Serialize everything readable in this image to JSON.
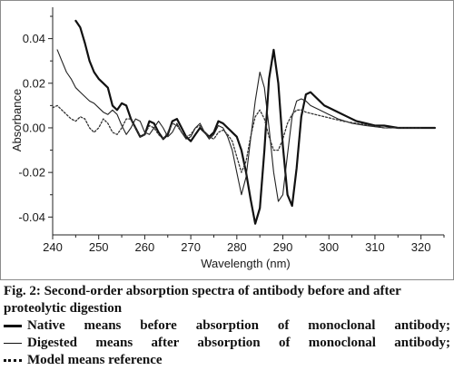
{
  "chart_data": {
    "type": "line",
    "xlabel": "Wavelength (nm)",
    "ylabel": "Absorbance",
    "xlim": [
      240,
      325
    ],
    "ylim": [
      -0.048,
      0.05
    ],
    "x_ticks": [
      240,
      250,
      260,
      270,
      280,
      290,
      300,
      310,
      320
    ],
    "y_ticks": [
      0.04,
      0.02,
      0.0,
      -0.02,
      -0.04
    ],
    "y_tick_labels": [
      "0.04",
      "0.02",
      "0.00",
      "-0.02",
      "-0.04"
    ],
    "grid": false,
    "series": [
      {
        "name": "Native",
        "style": "solid-thick",
        "points": [
          [
            245,
            0.048
          ],
          [
            246,
            0.045
          ],
          [
            247,
            0.038
          ],
          [
            248,
            0.03
          ],
          [
            249,
            0.025
          ],
          [
            250,
            0.022
          ],
          [
            251,
            0.02
          ],
          [
            252,
            0.018
          ],
          [
            253,
            0.01
          ],
          [
            254,
            0.008
          ],
          [
            255,
            0.011
          ],
          [
            256,
            0.01
          ],
          [
            257,
            0.004
          ],
          [
            258,
            0.0
          ],
          [
            259,
            -0.004
          ],
          [
            260,
            -0.003
          ],
          [
            261,
            0.003
          ],
          [
            262,
            0.002
          ],
          [
            263,
            -0.002
          ],
          [
            264,
            -0.005
          ],
          [
            265,
            -0.003
          ],
          [
            266,
            0.003
          ],
          [
            267,
            0.004
          ],
          [
            268,
            0.0
          ],
          [
            269,
            -0.004
          ],
          [
            270,
            -0.006
          ],
          [
            271,
            -0.003
          ],
          [
            272,
            0.0
          ],
          [
            273,
            -0.002
          ],
          [
            274,
            -0.004
          ],
          [
            275,
            -0.002
          ],
          [
            276,
            0.003
          ],
          [
            277,
            0.002
          ],
          [
            278,
            0.0
          ],
          [
            279,
            -0.002
          ],
          [
            280,
            -0.004
          ],
          [
            281,
            -0.01
          ],
          [
            282,
            -0.02
          ],
          [
            283,
            -0.032
          ],
          [
            284,
            -0.043
          ],
          [
            285,
            -0.036
          ],
          [
            286,
            -0.01
          ],
          [
            287,
            0.022
          ],
          [
            288,
            0.035
          ],
          [
            289,
            0.02
          ],
          [
            290,
            -0.008
          ],
          [
            291,
            -0.03
          ],
          [
            292,
            -0.035
          ],
          [
            293,
            -0.018
          ],
          [
            294,
            0.005
          ],
          [
            295,
            0.015
          ],
          [
            296,
            0.016
          ],
          [
            297,
            0.014
          ],
          [
            298,
            0.012
          ],
          [
            299,
            0.01
          ],
          [
            300,
            0.009
          ],
          [
            302,
            0.007
          ],
          [
            304,
            0.005
          ],
          [
            306,
            0.003
          ],
          [
            308,
            0.002
          ],
          [
            310,
            0.001
          ],
          [
            312,
            0.001
          ],
          [
            315,
            0.0
          ],
          [
            318,
            0.0
          ],
          [
            320,
            0.0
          ],
          [
            323,
            0.0
          ]
        ]
      },
      {
        "name": "Digested",
        "style": "solid-thin",
        "points": [
          [
            241,
            0.035
          ],
          [
            242,
            0.03
          ],
          [
            243,
            0.025
          ],
          [
            244,
            0.022
          ],
          [
            245,
            0.018
          ],
          [
            246,
            0.016
          ],
          [
            247,
            0.014
          ],
          [
            248,
            0.012
          ],
          [
            249,
            0.011
          ],
          [
            250,
            0.009
          ],
          [
            251,
            0.007
          ],
          [
            252,
            0.006
          ],
          [
            253,
            0.008
          ],
          [
            254,
            0.006
          ],
          [
            255,
            0.001
          ],
          [
            256,
            -0.003
          ],
          [
            257,
            0.0
          ],
          [
            258,
            0.004
          ],
          [
            259,
            0.003
          ],
          [
            260,
            -0.002
          ],
          [
            261,
            -0.003
          ],
          [
            262,
            0.0
          ],
          [
            263,
            0.003
          ],
          [
            264,
            0.0
          ],
          [
            265,
            -0.004
          ],
          [
            266,
            -0.002
          ],
          [
            267,
            0.002
          ],
          [
            268,
            -0.002
          ],
          [
            269,
            -0.005
          ],
          [
            270,
            -0.004
          ],
          [
            271,
            0.0
          ],
          [
            272,
            0.002
          ],
          [
            273,
            -0.002
          ],
          [
            274,
            -0.005
          ],
          [
            275,
            -0.003
          ],
          [
            276,
            0.001
          ],
          [
            277,
            0.0
          ],
          [
            278,
            -0.004
          ],
          [
            279,
            -0.01
          ],
          [
            280,
            -0.02
          ],
          [
            281,
            -0.03
          ],
          [
            282,
            -0.022
          ],
          [
            283,
            -0.005
          ],
          [
            284,
            0.012
          ],
          [
            285,
            0.025
          ],
          [
            286,
            0.018
          ],
          [
            287,
            0.0
          ],
          [
            288,
            -0.02
          ],
          [
            289,
            -0.033
          ],
          [
            290,
            -0.03
          ],
          [
            291,
            -0.012
          ],
          [
            292,
            0.005
          ],
          [
            293,
            0.012
          ],
          [
            294,
            0.013
          ],
          [
            295,
            0.012
          ],
          [
            296,
            0.01
          ],
          [
            298,
            0.008
          ],
          [
            300,
            0.006
          ],
          [
            302,
            0.004
          ],
          [
            305,
            0.002
          ],
          [
            308,
            0.001
          ],
          [
            312,
            0.0
          ],
          [
            318,
            0.0
          ],
          [
            323,
            0.0
          ]
        ]
      },
      {
        "name": "Model",
        "style": "dotted",
        "points": [
          [
            240,
            0.009
          ],
          [
            241,
            0.01
          ],
          [
            242,
            0.008
          ],
          [
            243,
            0.006
          ],
          [
            244,
            0.004
          ],
          [
            245,
            0.003
          ],
          [
            246,
            0.005
          ],
          [
            247,
            0.004
          ],
          [
            248,
            0.0
          ],
          [
            249,
            -0.002
          ],
          [
            250,
            0.0
          ],
          [
            251,
            0.004
          ],
          [
            252,
            0.002
          ],
          [
            253,
            -0.002
          ],
          [
            254,
            -0.003
          ],
          [
            255,
            0.0
          ],
          [
            256,
            0.004
          ],
          [
            257,
            0.004
          ],
          [
            258,
            0.0
          ],
          [
            259,
            -0.004
          ],
          [
            260,
            -0.003
          ],
          [
            261,
            0.001
          ],
          [
            262,
            0.0
          ],
          [
            263,
            -0.003
          ],
          [
            264,
            -0.005
          ],
          [
            265,
            -0.002
          ],
          [
            266,
            0.002
          ],
          [
            267,
            0.001
          ],
          [
            268,
            -0.002
          ],
          [
            269,
            -0.004
          ],
          [
            270,
            -0.003
          ],
          [
            271,
            0.0
          ],
          [
            272,
            0.001
          ],
          [
            273,
            -0.002
          ],
          [
            274,
            -0.004
          ],
          [
            275,
            -0.005
          ],
          [
            276,
            -0.002
          ],
          [
            277,
            -0.001
          ],
          [
            278,
            -0.003
          ],
          [
            279,
            -0.006
          ],
          [
            280,
            -0.013
          ],
          [
            281,
            -0.02
          ],
          [
            282,
            -0.015
          ],
          [
            283,
            -0.004
          ],
          [
            284,
            0.005
          ],
          [
            285,
            0.008
          ],
          [
            286,
            0.004
          ],
          [
            287,
            -0.004
          ],
          [
            288,
            -0.01
          ],
          [
            289,
            -0.01
          ],
          [
            290,
            -0.005
          ],
          [
            291,
            0.002
          ],
          [
            292,
            0.006
          ],
          [
            293,
            0.008
          ],
          [
            294,
            0.008
          ],
          [
            295,
            0.007
          ],
          [
            297,
            0.006
          ],
          [
            299,
            0.005
          ],
          [
            301,
            0.004
          ],
          [
            303,
            0.003
          ],
          [
            306,
            0.002
          ],
          [
            309,
            0.001
          ],
          [
            312,
            0.0
          ],
          [
            316,
            0.0
          ],
          [
            320,
            0.0
          ]
        ]
      }
    ]
  },
  "caption": {
    "title": "Fig. 2: Second-order absorption spectra of antibody before and after proteolytic digestion",
    "legend": [
      {
        "marker": "solid-thick",
        "text": "Native means before absorption of monoclonal antibody;"
      },
      {
        "marker": "solid-thin",
        "text": "Digested means after absorption of monoclonal antibody;"
      },
      {
        "marker": "dotted",
        "text": "Model means reference"
      }
    ]
  }
}
